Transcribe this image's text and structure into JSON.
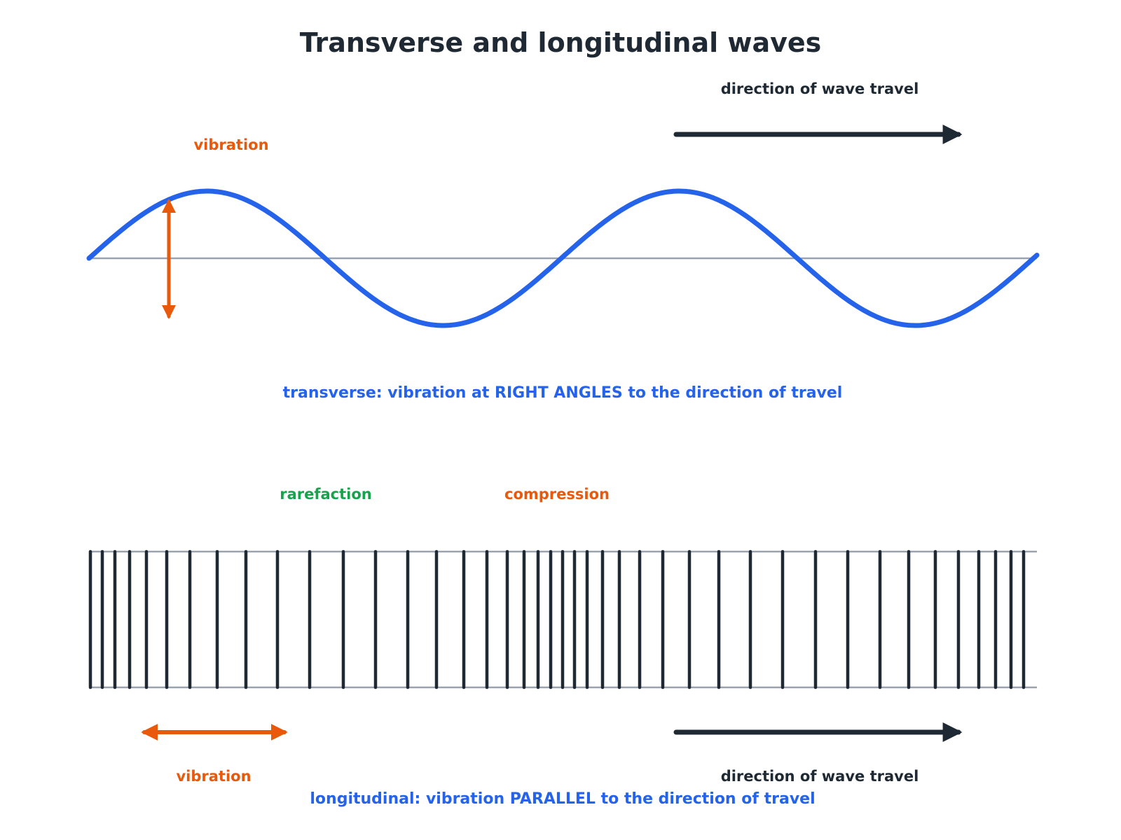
{
  "title": "Transverse and longitudinal waves",
  "transverse": {
    "direction_label": "direction of wave travel",
    "vibration_label": "vibration",
    "caption": "transverse: vibration at RIGHT ANGLES to the direction of travel"
  },
  "longitudinal": {
    "rarefaction_label": "rarefaction",
    "compression_label": "compression",
    "vibration_label": "vibration",
    "direction_label": "direction of wave travel",
    "caption": "longitudinal: vibration PARALLEL to the direction of travel"
  },
  "colors": {
    "title": "#1f2933",
    "wave": "#2563eb",
    "vibration": "#e8590c",
    "rarefaction": "#16a34a",
    "axis": "#9aa3ad",
    "dark": "#1f2933"
  }
}
